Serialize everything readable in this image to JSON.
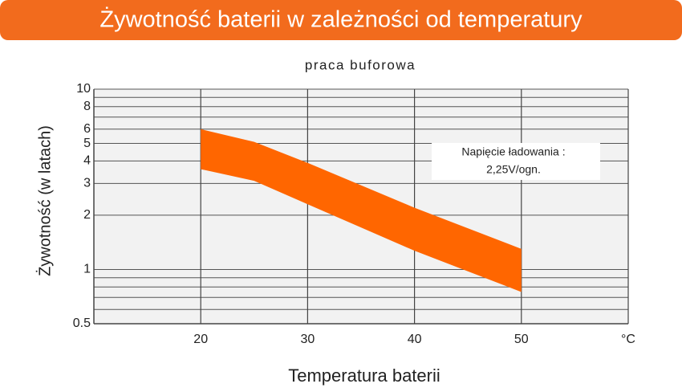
{
  "chart_data": {
    "type": "range_area",
    "title": "Żywotność baterii w zależności od temperatury",
    "subtitle": "praca buforowa",
    "x_label": "Temperatura baterii",
    "y_label": "Żywotność (w latach)",
    "annotation": [
      "Napięcie ładowania :",
      "2,25V/ogn."
    ],
    "x": [
      20,
      25,
      30,
      40,
      50
    ],
    "upper": [
      6.0,
      5.1,
      3.9,
      2.2,
      1.3
    ],
    "lower": [
      3.6,
      3.1,
      2.3,
      1.27,
      0.75
    ],
    "color": "#ff6600",
    "xlim": [
      10,
      60
    ],
    "xticks": [
      20,
      30,
      40,
      50,
      {
        "value": 60,
        "label": "°C"
      }
    ],
    "ylim": [
      0.5,
      10
    ],
    "yticks": [
      10,
      8,
      6,
      5,
      4,
      3,
      2,
      1,
      0.5
    ],
    "minor_yticks": [
      9,
      7,
      0.9,
      0.8,
      0.7,
      0.6
    ],
    "y_scale": "log",
    "grid": true
  }
}
